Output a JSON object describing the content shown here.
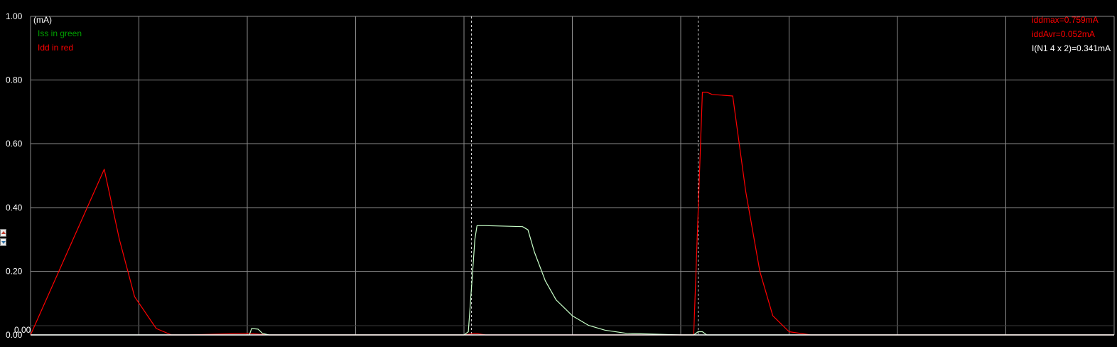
{
  "chart_data": {
    "type": "line",
    "title": "",
    "xlabel": "",
    "ylabel": "(mA)",
    "ylim": [
      0,
      1.0
    ],
    "xlim": [
      0,
      100
    ],
    "y_ticks": [
      "0.00",
      "0.20",
      "0.40",
      "0.60",
      "0.80",
      "1.00"
    ],
    "y_tick_values": [
      0,
      0.2,
      0.4,
      0.6,
      0.8,
      1.0
    ],
    "secondary_baseline_label": "0.00",
    "x_gridlines": [
      0,
      10,
      20,
      30,
      40,
      50,
      60,
      70,
      80,
      90,
      100
    ],
    "grid": true,
    "legend_placement": "top-left",
    "legend": [
      {
        "text": "Iss in green",
        "color": "#00a000"
      },
      {
        "text": "Idd in red",
        "color": "#ff0000"
      }
    ],
    "readouts": [
      {
        "text": "iddmax=0.759mA",
        "color": "#ff0000"
      },
      {
        "text": "iddAvr=0.052mA",
        "color": "#ff0000"
      },
      {
        "text": "I(N1 4 x 2)=0.341mA",
        "color": "#ffffff"
      }
    ],
    "cursors": [
      40.7,
      61.6
    ],
    "series": [
      {
        "id": "idd",
        "color": "#ff0000",
        "x": [
          0,
          6.8,
          8.2,
          9.6,
          11.6,
          13,
          14.5,
          20,
          22,
          40,
          41,
          42,
          61.2,
          61.6,
          62,
          62.4,
          62.9,
          64.8,
          66,
          67.3,
          68.5,
          70,
          72,
          100
        ],
        "y": [
          0,
          0.52,
          0.3,
          0.12,
          0.02,
          0,
          0,
          0.005,
          0,
          0,
          0.005,
          0,
          0,
          0.38,
          0.762,
          0.762,
          0.755,
          0.75,
          0.45,
          0.2,
          0.06,
          0.01,
          0,
          0
        ]
      },
      {
        "id": "iss",
        "color": "#c8ffc8",
        "x": [
          0,
          20.2,
          20.4,
          21,
          21.4,
          22,
          40,
          40.4,
          40.8,
          41,
          41.2,
          42,
          45.4,
          45.9,
          46.5,
          47.5,
          48.5,
          50,
          51.5,
          53,
          55,
          58,
          60,
          61.2,
          61.6,
          62,
          62.4,
          63,
          100
        ],
        "y": [
          0,
          0,
          0.02,
          0.018,
          0.005,
          0,
          0,
          0.01,
          0.2,
          0.3,
          0.343,
          0.343,
          0.34,
          0.33,
          0.26,
          0.17,
          0.11,
          0.06,
          0.03,
          0.015,
          0.005,
          0.002,
          0,
          0,
          0.01,
          0.01,
          0,
          0,
          0
        ]
      }
    ]
  },
  "controls": {
    "stepper": {
      "up": "scale-up",
      "down": "scale-down"
    }
  }
}
